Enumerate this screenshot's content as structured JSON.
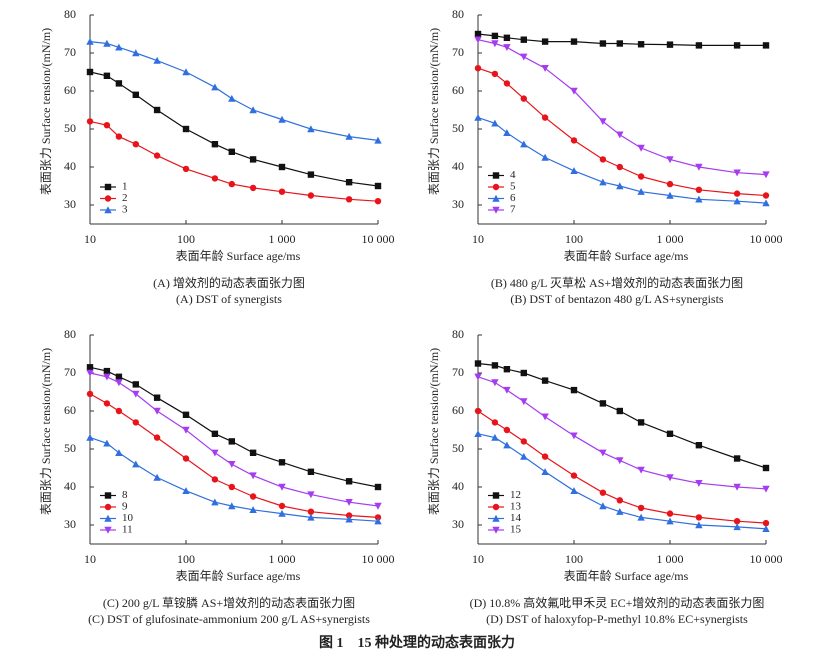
{
  "figure_caption": "图 1　15 种处理的动态表面张力",
  "chart_data": [
    {
      "type": "line",
      "caption_zh": "(A) 增效剂的动态表面张力图",
      "caption_en": "(A) DST of synergists",
      "x_label": "表面年龄 Surface age/ms",
      "y_label": "表面张力 Surface tension/(mN/m)",
      "x_scale": "log",
      "xlim": [
        10,
        10000
      ],
      "xticks": [
        10,
        100,
        {
          "value": 1000,
          "label": "1 000"
        },
        {
          "value": 10000,
          "label": "10 000"
        }
      ],
      "ylim": [
        25,
        80
      ],
      "yticks": [
        30,
        40,
        50,
        60,
        70,
        80
      ],
      "legend": "lower left",
      "x": [
        10,
        15,
        20,
        30,
        50,
        100,
        200,
        300,
        500,
        1000,
        2000,
        5000,
        10000
      ],
      "series": [
        {
          "name": "1",
          "color": "#111111",
          "marker": "square",
          "values": [
            65,
            64,
            62,
            59,
            55,
            50,
            46,
            44,
            42,
            40,
            38,
            36,
            35
          ]
        },
        {
          "name": "2",
          "color": "#e8141b",
          "marker": "circle",
          "values": [
            52,
            51,
            48,
            46,
            43,
            39.5,
            37,
            35.5,
            34.5,
            33.5,
            32.5,
            31.5,
            31
          ]
        },
        {
          "name": "3",
          "color": "#2f6fe0",
          "marker": "triangle-up",
          "values": [
            73,
            72.5,
            71.5,
            70,
            68,
            65,
            61,
            58,
            55,
            52.5,
            50,
            48,
            47
          ]
        }
      ]
    },
    {
      "type": "line",
      "caption_zh": "(B) 480 g/L 灭草松 AS+增效剂的动态表面张力图",
      "caption_en": "(B) DST of bentazon 480 g/L AS+synergists",
      "x_label": "表面年龄 Surface age/ms",
      "y_label": "表面张力 Surface tension/(mN/m)",
      "x_scale": "log",
      "xlim": [
        10,
        10000
      ],
      "xticks": [
        10,
        100,
        {
          "value": 1000,
          "label": "1 000"
        },
        {
          "value": 10000,
          "label": "10 000"
        }
      ],
      "ylim": [
        25,
        80
      ],
      "yticks": [
        30,
        40,
        50,
        60,
        70,
        80
      ],
      "legend": "lower left",
      "x": [
        10,
        15,
        20,
        30,
        50,
        100,
        200,
        300,
        500,
        1000,
        2000,
        5000,
        10000
      ],
      "series": [
        {
          "name": "4",
          "color": "#111111",
          "marker": "square",
          "values": [
            75,
            74.5,
            74,
            73.5,
            73,
            73,
            72.5,
            72.5,
            72.3,
            72.2,
            72,
            72,
            72
          ]
        },
        {
          "name": "5",
          "color": "#e8141b",
          "marker": "circle",
          "values": [
            66,
            64.5,
            62,
            58,
            53,
            47,
            42,
            40,
            37.5,
            35.5,
            34,
            33,
            32.5
          ]
        },
        {
          "name": "6",
          "color": "#2f6fe0",
          "marker": "triangle-up",
          "values": [
            53,
            51.5,
            49,
            46,
            42.5,
            39,
            36,
            35,
            33.5,
            32.5,
            31.5,
            31,
            30.5
          ]
        },
        {
          "name": "7",
          "color": "#a63cf0",
          "marker": "triangle-down",
          "values": [
            73.5,
            72.5,
            71.5,
            69,
            66,
            60,
            52,
            48.5,
            45,
            42,
            40,
            38.5,
            38
          ]
        }
      ]
    },
    {
      "type": "line",
      "caption_zh": "(C) 200 g/L 草铵膦 AS+增效剂的动态表面张力图",
      "caption_en": "(C) DST of glufosinate-ammonium 200 g/L AS+synergists",
      "x_label": "表面年龄 Surface age/ms",
      "y_label": "表面张力 Surface tension/(mN/m)",
      "x_scale": "log",
      "xlim": [
        10,
        10000
      ],
      "xticks": [
        10,
        100,
        {
          "value": 1000,
          "label": "1 000"
        },
        {
          "value": 10000,
          "label": "10 000"
        }
      ],
      "ylim": [
        25,
        80
      ],
      "yticks": [
        30,
        40,
        50,
        60,
        70,
        80
      ],
      "legend": "lower left",
      "x": [
        10,
        15,
        20,
        30,
        50,
        100,
        200,
        300,
        500,
        1000,
        2000,
        5000,
        10000
      ],
      "series": [
        {
          "name": "8",
          "color": "#111111",
          "marker": "square",
          "values": [
            71.5,
            70.5,
            69,
            67,
            63.5,
            59,
            54,
            52,
            49,
            46.5,
            44,
            41.5,
            40
          ]
        },
        {
          "name": "9",
          "color": "#e8141b",
          "marker": "circle",
          "values": [
            64.5,
            62,
            60,
            57,
            53,
            47.5,
            42,
            40,
            37.5,
            35,
            33.5,
            32.5,
            32
          ]
        },
        {
          "name": "10",
          "color": "#2f6fe0",
          "marker": "triangle-up",
          "values": [
            53,
            51.5,
            49,
            46,
            42.5,
            39,
            36,
            35,
            34,
            33,
            32,
            31.5,
            31
          ]
        },
        {
          "name": "11",
          "color": "#a63cf0",
          "marker": "triangle-down",
          "values": [
            70,
            69,
            67.5,
            64.5,
            60,
            55,
            49,
            46,
            43,
            40,
            38,
            36,
            35
          ]
        }
      ]
    },
    {
      "type": "line",
      "caption_zh": "(D) 10.8% 高效氟吡甲禾灵 EC+增效剂的动态表面张力图",
      "caption_en": "(D) DST of haloxyfop-P-methyl 10.8% EC+synergists",
      "x_label": "表面年龄 Surface age/ms",
      "y_label": "表面张力 Surface tension/(mN/m)",
      "x_scale": "log",
      "xlim": [
        10,
        10000
      ],
      "xticks": [
        10,
        100,
        {
          "value": 1000,
          "label": "1 000"
        },
        {
          "value": 10000,
          "label": "10 000"
        }
      ],
      "ylim": [
        25,
        80
      ],
      "yticks": [
        30,
        40,
        50,
        60,
        70,
        80
      ],
      "legend": "lower left",
      "x": [
        10,
        15,
        20,
        30,
        50,
        100,
        200,
        300,
        500,
        1000,
        2000,
        5000,
        10000
      ],
      "series": [
        {
          "name": "12",
          "color": "#111111",
          "marker": "square",
          "values": [
            72.5,
            72,
            71,
            70,
            68,
            65.5,
            62,
            60,
            57,
            54,
            51,
            47.5,
            45
          ]
        },
        {
          "name": "13",
          "color": "#e8141b",
          "marker": "circle",
          "values": [
            60,
            57,
            55,
            52,
            48,
            43,
            38.5,
            36.5,
            34.5,
            33,
            32,
            31,
            30.5
          ]
        },
        {
          "name": "14",
          "color": "#2f6fe0",
          "marker": "triangle-up",
          "values": [
            54,
            53,
            51,
            48,
            44,
            39,
            35,
            33.5,
            32,
            31,
            30,
            29.5,
            29
          ]
        },
        {
          "name": "15",
          "color": "#a63cf0",
          "marker": "triangle-down",
          "values": [
            69,
            67.5,
            65.5,
            62.5,
            58.5,
            53.5,
            49,
            47,
            44.5,
            42.5,
            41,
            40,
            39.5
          ]
        }
      ]
    }
  ]
}
